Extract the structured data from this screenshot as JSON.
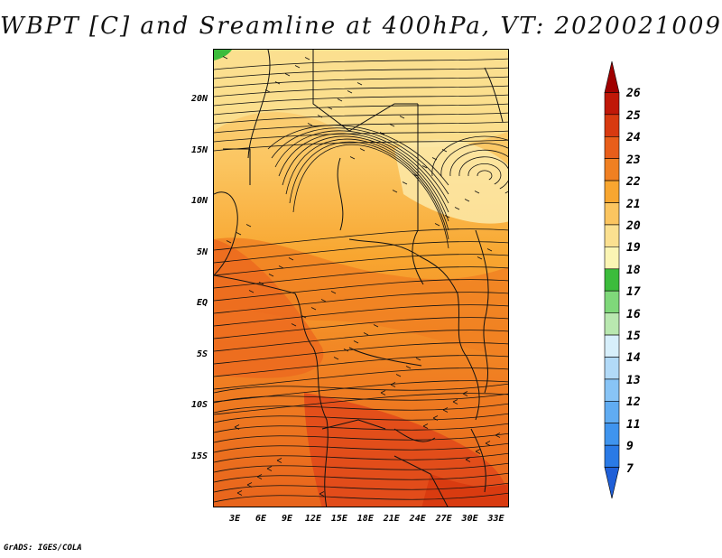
{
  "title": "WBPT [C] and Sreamline at 400hPa, VT: 2020021009",
  "credit": "GrADS: IGES/COLA",
  "axes": {
    "lat_labels": [
      "20N",
      "15N",
      "10N",
      "5N",
      "EQ",
      "5S",
      "10S",
      "15S"
    ],
    "lat_values": [
      20,
      15,
      10,
      5,
      0,
      -5,
      -10,
      -15
    ],
    "lon_labels": [
      "3E",
      "6E",
      "9E",
      "12E",
      "15E",
      "18E",
      "21E",
      "24E",
      "27E",
      "30E",
      "33E"
    ],
    "lon_values": [
      3,
      6,
      9,
      12,
      15,
      18,
      21,
      24,
      27,
      30,
      33
    ],
    "lon_range": [
      0.5,
      34.5
    ],
    "lat_range": [
      -20,
      25
    ]
  },
  "colorbar": {
    "levels": [
      "7",
      "9",
      "11",
      "12",
      "13",
      "14",
      "15",
      "16",
      "17",
      "18",
      "19",
      "20",
      "21",
      "22",
      "23",
      "24",
      "25",
      "26"
    ],
    "colors": [
      "#1f5fd8",
      "#2a7ae6",
      "#3f94ee",
      "#60acf2",
      "#88c4f6",
      "#b2daf8",
      "#d7effb",
      "#b9e8b0",
      "#7fd87a",
      "#3cbc3c",
      "#fbf5b4",
      "#fbe090",
      "#fbc560",
      "#f8a630",
      "#f08022",
      "#e85e1a",
      "#d83a10",
      "#c01808",
      "#a00000"
    ]
  },
  "map": {
    "field": "WBPT",
    "units": "C",
    "level_hpa": 400,
    "valid_time": "2020021009"
  }
}
